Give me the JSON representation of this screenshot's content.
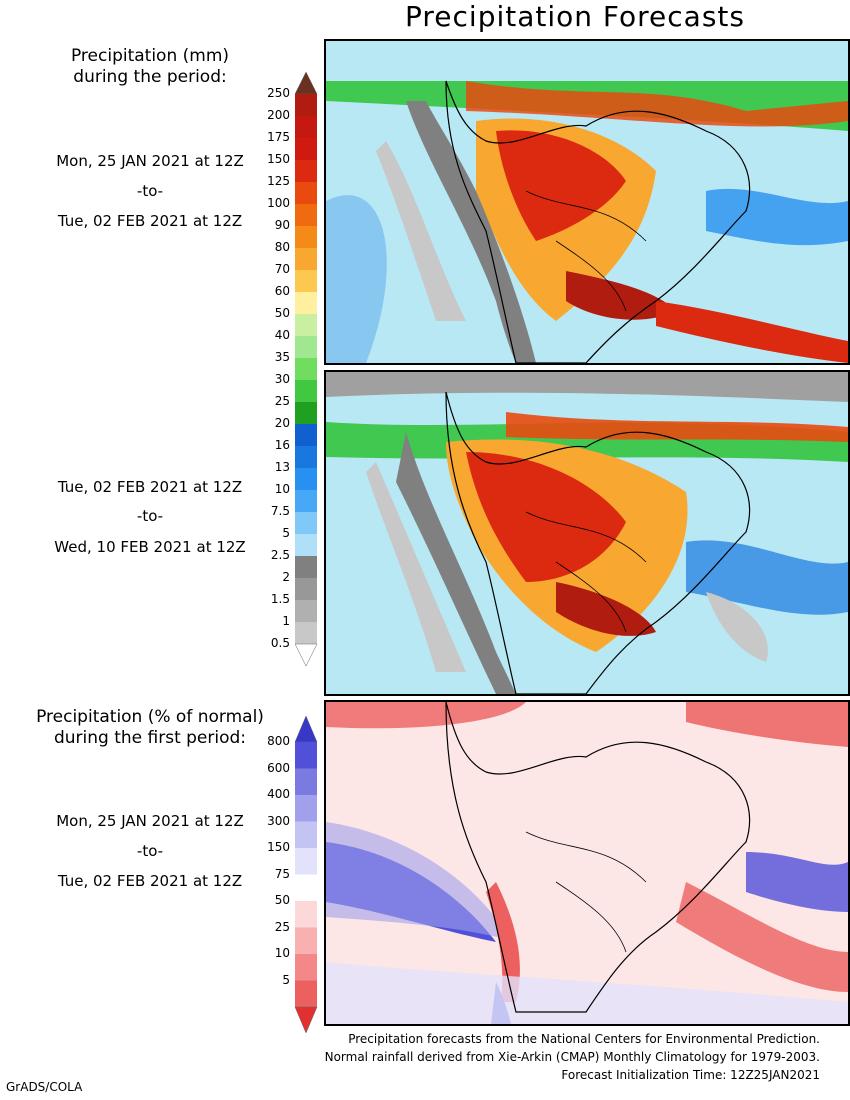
{
  "title": "Precipitation Forecasts",
  "precip_legend": {
    "heading_line1": "Precipitation (mm)",
    "heading_line2": "during the period:",
    "levels": [
      "250",
      "200",
      "175",
      "150",
      "125",
      "100",
      "90",
      "80",
      "70",
      "60",
      "50",
      "40",
      "35",
      "30",
      "25",
      "20",
      "16",
      "13",
      "10",
      "7.5",
      "5",
      "2.5",
      "2",
      "1.5",
      "1",
      "0.5"
    ],
    "colors": [
      "#b01c10",
      "#c41810",
      "#d01a10",
      "#dc2a10",
      "#e84a10",
      "#f06a10",
      "#f48a18",
      "#f8a830",
      "#fcc850",
      "#fff0a0",
      "#c8f0a0",
      "#a0e890",
      "#70dc60",
      "#40c840",
      "#20a020",
      "#1060d0",
      "#1878e0",
      "#2890f0",
      "#48a8f8",
      "#80c8f8",
      "#b0e0f8",
      "#808080",
      "#989898",
      "#b0b0b0",
      "#c8c8c8"
    ],
    "top_arrow_color": "#6a3020",
    "bottom_arrow_color": "#ffffff"
  },
  "period1": {
    "start": "Mon, 25 JAN 2021 at 12Z",
    "sep": "-to-",
    "end": "Tue, 02 FEB 2021 at 12Z"
  },
  "period2": {
    "start": "Tue, 02 FEB 2021 at 12Z",
    "sep": "-to-",
    "end": "Wed, 10 FEB 2021 at 12Z"
  },
  "anom_legend": {
    "heading_line1": "Precipitation (% of normal)",
    "heading_line2": "during the first period:",
    "levels": [
      "800",
      "600",
      "400",
      "300",
      "150",
      "75",
      "50",
      "25",
      "10",
      "5"
    ],
    "colors": [
      "#5050d8",
      "#7a7ae0",
      "#a0a0ec",
      "#c4c4f4",
      "#e2e2fa",
      "#ffffff",
      "#fcd8d8",
      "#f8b0b0",
      "#f48888",
      "#ec6060"
    ],
    "top_arrow_color": "#3838c8",
    "bottom_arrow_color": "#e03030"
  },
  "period3": {
    "start": "Mon, 25 JAN 2021 at 12Z",
    "sep": "-to-",
    "end": "Tue, 02 FEB 2021 at 12Z"
  },
  "footer": {
    "line1": "Precipitation forecasts from the National Centers for Environmental Prediction.",
    "line2": "Normal rainfall derived from Xie-Arkin (CMAP) Monthly Climatology for 1979-2003.",
    "line3": "Forecast Initialization Time: 12Z25JAN2021"
  },
  "credit": "GrADS/COLA"
}
